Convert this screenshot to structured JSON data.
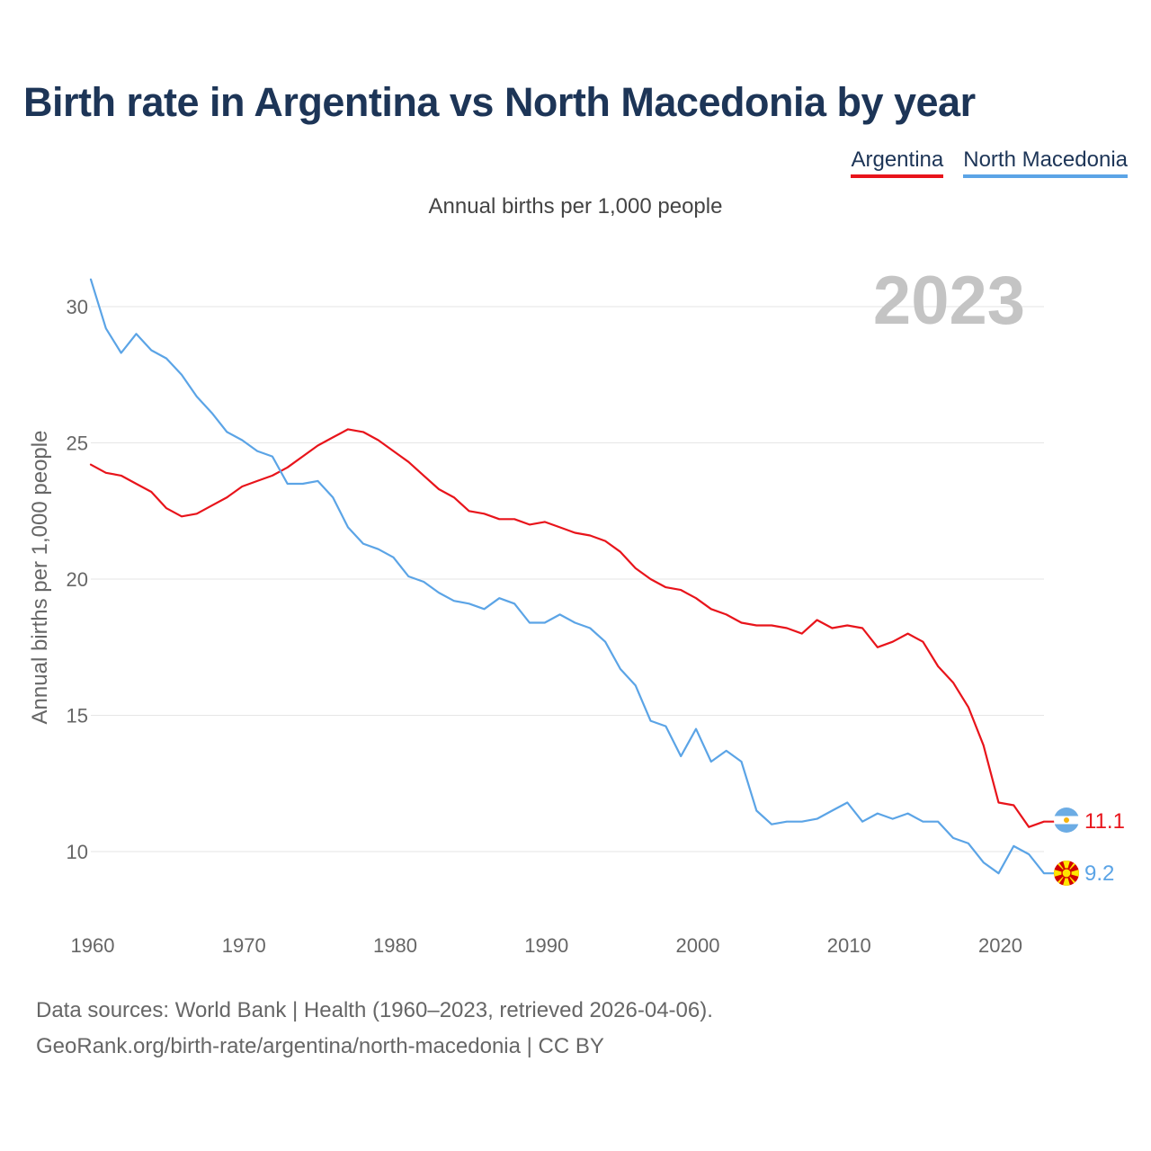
{
  "title": "Birth rate in Argentina vs North Macedonia by year",
  "subtitle": "Annual births per 1,000 people",
  "footer": {
    "line1": "Data sources: World Bank | Health (1960–2023, retrieved 2026-04-06).",
    "line2": "GeoRank.org/birth-rate/argentina/north-macedonia | CC BY"
  },
  "colors": {
    "argentina": "#e8141b",
    "north_macedonia": "#5ba4e6",
    "title": "#1d3557",
    "year_watermark": "#c4c4c4"
  },
  "chart_data": {
    "type": "line",
    "title": "Birth rate in Argentina vs North Macedonia by year",
    "ylabel": "Annual births per 1,000 people",
    "xlabel": "",
    "xlim": [
      1960,
      2023
    ],
    "ylim": [
      8,
      31.5
    ],
    "x_ticks": [
      1960,
      1970,
      1980,
      1990,
      2000,
      2010,
      2020
    ],
    "y_ticks": [
      10,
      15,
      20,
      25,
      30
    ],
    "grid": "horizontal",
    "year_label": "2023",
    "legend_position": "top-right",
    "x": [
      1960,
      1961,
      1962,
      1963,
      1964,
      1965,
      1966,
      1967,
      1968,
      1969,
      1970,
      1971,
      1972,
      1973,
      1974,
      1975,
      1976,
      1977,
      1978,
      1979,
      1980,
      1981,
      1982,
      1983,
      1984,
      1985,
      1986,
      1987,
      1988,
      1989,
      1990,
      1991,
      1992,
      1993,
      1994,
      1995,
      1996,
      1997,
      1998,
      1999,
      2000,
      2001,
      2002,
      2003,
      2004,
      2005,
      2006,
      2007,
      2008,
      2009,
      2010,
      2011,
      2012,
      2013,
      2014,
      2015,
      2016,
      2017,
      2018,
      2019,
      2020,
      2021,
      2022,
      2023
    ],
    "series": [
      {
        "name": "Argentina",
        "end_label": "11.1",
        "values": [
          24.2,
          23.9,
          23.8,
          23.5,
          23.2,
          22.6,
          22.3,
          22.4,
          22.7,
          23.0,
          23.4,
          23.6,
          23.8,
          24.1,
          24.5,
          24.9,
          25.2,
          25.5,
          25.4,
          25.1,
          24.7,
          24.3,
          23.8,
          23.3,
          23.0,
          22.5,
          22.4,
          22.2,
          22.2,
          22.0,
          22.1,
          21.9,
          21.7,
          21.6,
          21.4,
          21.0,
          20.4,
          20.0,
          19.7,
          19.6,
          19.3,
          18.9,
          18.7,
          18.4,
          18.3,
          18.3,
          18.2,
          18.0,
          18.5,
          18.2,
          18.3,
          18.2,
          17.5,
          17.7,
          18.0,
          17.7,
          16.8,
          16.2,
          15.3,
          13.9,
          11.8,
          11.7,
          10.9,
          11.1
        ]
      },
      {
        "name": "North Macedonia",
        "end_label": "9.2",
        "values": [
          31.0,
          29.2,
          28.3,
          29.0,
          28.4,
          28.1,
          27.5,
          26.7,
          26.1,
          25.4,
          25.1,
          24.7,
          24.5,
          23.5,
          23.5,
          23.6,
          23.0,
          21.9,
          21.3,
          21.1,
          20.8,
          20.1,
          19.9,
          19.5,
          19.2,
          19.1,
          18.9,
          19.3,
          19.1,
          18.4,
          18.4,
          18.7,
          18.4,
          18.2,
          17.7,
          16.7,
          16.1,
          14.8,
          14.6,
          13.5,
          14.5,
          13.3,
          13.7,
          13.3,
          11.5,
          11.0,
          11.1,
          11.1,
          11.2,
          11.5,
          11.8,
          11.1,
          11.4,
          11.2,
          11.4,
          11.1,
          11.1,
          10.5,
          10.3,
          9.6,
          9.2,
          10.2,
          9.9,
          9.2
        ]
      }
    ]
  }
}
